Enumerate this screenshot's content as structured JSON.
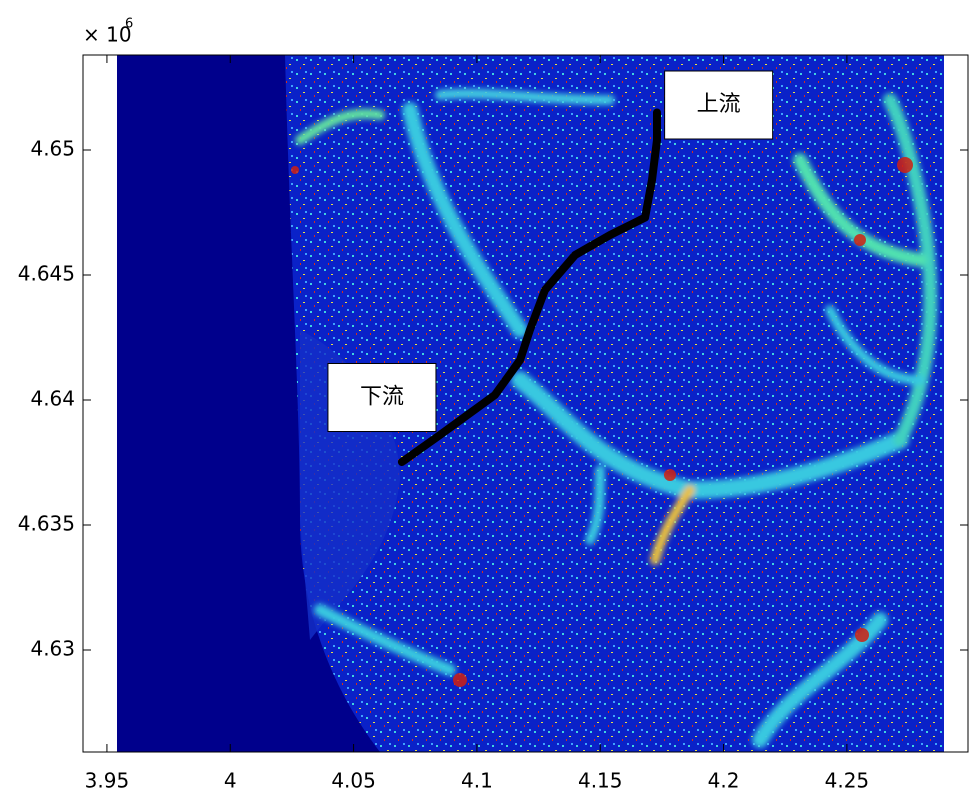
{
  "chart_data": {
    "type": "image",
    "y_scale_label": {
      "base": "× 10",
      "exponent": "6"
    },
    "xlim": [
      3.9403,
      4.2991
    ],
    "ylim": [
      4.62592,
      4.6538
    ],
    "xticks": [
      3.95,
      4,
      4.05,
      4.1,
      4.15,
      4.2,
      4.25
    ],
    "yticks": [
      4.63,
      4.635,
      4.64,
      4.645,
      4.65
    ],
    "series": [
      {
        "color": "#000000",
        "x": [
          4.0696,
          4.085,
          4.1073,
          4.1175,
          4.1215,
          4.1276,
          4.1398,
          4.154,
          4.1682,
          4.171,
          4.173,
          4.173
        ],
        "values": [
          4.63752,
          4.6386,
          4.6402,
          4.6416,
          4.6428,
          4.6444,
          4.6458,
          4.6466,
          4.6473,
          4.6488,
          4.6504,
          4.6515
        ]
      }
    ],
    "annotations": [
      {
        "text": "上流",
        "x": 4.198,
        "y": 4.6518
      },
      {
        "text": "下流",
        "x": 4.0615,
        "y": 4.6401
      }
    ]
  }
}
